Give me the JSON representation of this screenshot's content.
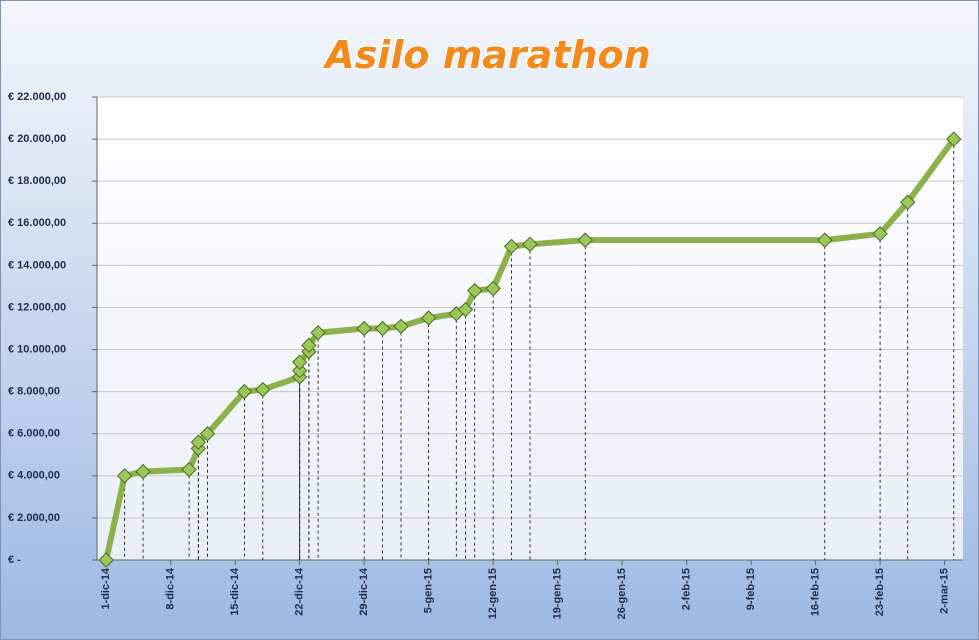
{
  "chart_data": {
    "type": "line",
    "title": "Asilo marathon",
    "color": "#8cb04a",
    "grid": true,
    "drop_lines": true,
    "x": [
      "2014-12-01",
      "2014-12-03",
      "2014-12-05",
      "2014-12-10",
      "2014-12-11",
      "2014-12-11",
      "2014-12-12",
      "2014-12-16",
      "2014-12-18",
      "2014-12-22",
      "2014-12-22",
      "2014-12-22",
      "2014-12-23",
      "2014-12-23",
      "2014-12-24",
      "2014-12-29",
      "2014-12-31",
      "2015-01-02",
      "2015-01-05",
      "2015-01-08",
      "2015-01-09",
      "2015-01-10",
      "2015-01-12",
      "2015-01-14",
      "2015-01-16",
      "2015-01-22",
      "2015-02-17",
      "2015-02-23",
      "2015-02-26",
      "2015-03-03"
    ],
    "values": [
      0,
      4000,
      4200,
      4300,
      5300,
      5600,
      6000,
      8000,
      8100,
      8700,
      9000,
      9400,
      9900,
      10200,
      10800,
      11000,
      11000,
      11100,
      11500,
      11700,
      11900,
      12800,
      12900,
      14900,
      15000,
      15200,
      15200,
      15500,
      17000,
      20000
    ],
    "xlim": [
      "2014-11-30",
      "2015-03-04"
    ],
    "xticks": [
      {
        "value": "2014-12-01",
        "label": "1-dic-14"
      },
      {
        "value": "2014-12-08",
        "label": "8-dic-14"
      },
      {
        "value": "2014-12-15",
        "label": "15-dic-14"
      },
      {
        "value": "2014-12-22",
        "label": "22-dic-14"
      },
      {
        "value": "2014-12-29",
        "label": "29-dic-14"
      },
      {
        "value": "2015-01-05",
        "label": "5-gen-15"
      },
      {
        "value": "2015-01-12",
        "label": "12-gen-15"
      },
      {
        "value": "2015-01-19",
        "label": "19-gen-15"
      },
      {
        "value": "2015-01-26",
        "label": "26-gen-15"
      },
      {
        "value": "2015-02-02",
        "label": "2-feb-15"
      },
      {
        "value": "2015-02-09",
        "label": "9-feb-15"
      },
      {
        "value": "2015-02-16",
        "label": "16-feb-15"
      },
      {
        "value": "2015-02-23",
        "label": "23-feb-15"
      },
      {
        "value": "2015-03-02",
        "label": "2-mar-15"
      }
    ],
    "ylim": [
      0,
      22000
    ],
    "yticks": [
      {
        "value": 0,
        "label": "€ -"
      },
      {
        "value": 2000,
        "label": "€ 2.000,00"
      },
      {
        "value": 4000,
        "label": "€ 4.000,00"
      },
      {
        "value": 6000,
        "label": "€ 6.000,00"
      },
      {
        "value": 8000,
        "label": "€ 8.000,00"
      },
      {
        "value": 10000,
        "label": "€ 10.000,00"
      },
      {
        "value": 12000,
        "label": "€ 12.000,00"
      },
      {
        "value": 14000,
        "label": "€ 14.000,00"
      },
      {
        "value": 16000,
        "label": "€ 16.000,00"
      },
      {
        "value": 18000,
        "label": "€ 18.000,00"
      },
      {
        "value": 20000,
        "label": "€ 20.000,00"
      },
      {
        "value": 22000,
        "label": "€ 22.000,00"
      }
    ]
  }
}
